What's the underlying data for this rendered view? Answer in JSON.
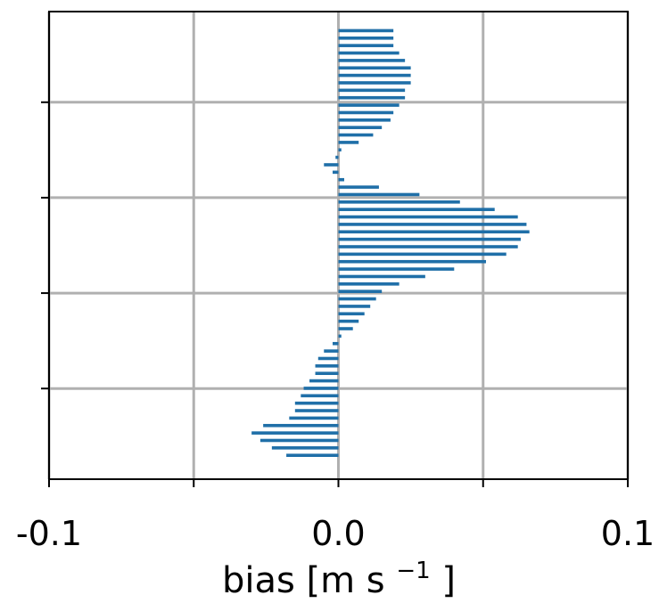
{
  "chart_data": {
    "type": "bar",
    "orientation": "horizontal",
    "xlabel": "bias [m s",
    "xlabel_superscript": "−1",
    "xlabel_suffix": "]",
    "xlim": [
      -0.1,
      0.1
    ],
    "xticks": [
      -0.1,
      -0.05,
      0.0,
      0.05,
      0.1
    ],
    "xtick_labels": [
      "-0.1",
      "",
      "0.0",
      "",
      "0.1"
    ],
    "ylim": [
      0,
      49
    ],
    "yticks": [
      39.5,
      29.5,
      19.5,
      9.5
    ],
    "ytick_labels": [
      "",
      "",
      "",
      ""
    ],
    "grid": true,
    "bar_color": "#1f6fa8",
    "series": [
      {
        "values": [
          0.019,
          0.019,
          0.019,
          0.021,
          0.023,
          0.025,
          0.025,
          0.025,
          0.023,
          0.023,
          0.021,
          0.019,
          0.018,
          0.015,
          0.012,
          0.007,
          0.001,
          -0.001,
          -0.005,
          -0.002,
          0.002,
          0.014,
          0.028,
          0.042,
          0.054,
          0.062,
          0.065,
          0.066,
          0.063,
          0.062,
          0.058,
          0.051,
          0.04,
          0.03,
          0.021,
          0.015,
          0.013,
          0.011,
          0.009,
          0.007,
          0.005,
          0.001,
          -0.002,
          -0.005,
          -0.007,
          -0.008,
          -0.008,
          -0.01,
          -0.012,
          -0.013,
          -0.015,
          -0.015,
          -0.017,
          -0.026,
          -0.03,
          -0.027,
          -0.023,
          -0.018
        ]
      }
    ]
  }
}
